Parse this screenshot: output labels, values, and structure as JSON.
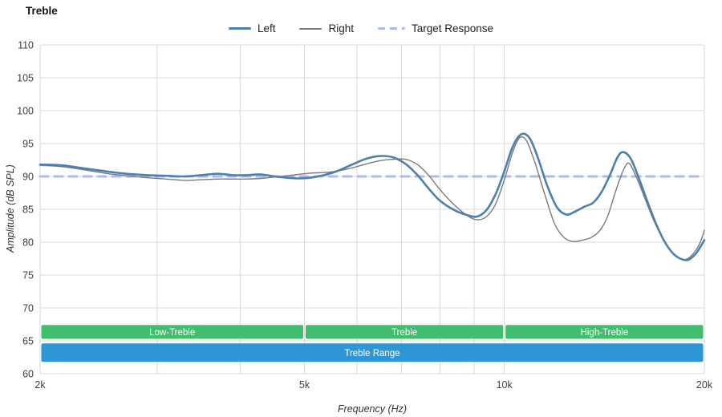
{
  "title": "Treble",
  "legend": [
    {
      "label": "Left",
      "color": "#4b80af",
      "style": "solid-thick"
    },
    {
      "label": "Right",
      "color": "#7b7b7b",
      "style": "solid-thin"
    },
    {
      "label": "Target Response",
      "color": "#aeb8f2",
      "style": "dashed"
    }
  ],
  "chart_data": {
    "type": "line",
    "title": "Treble",
    "xlabel": "Frequency (Hz)",
    "ylabel": "Amplitude (dB SPL)",
    "x_scale": "log",
    "xlim": [
      2000,
      20000
    ],
    "ylim": [
      60,
      110
    ],
    "y_ticks": [
      60,
      65,
      70,
      75,
      80,
      85,
      90,
      95,
      100,
      105,
      110
    ],
    "x_ticks": [
      {
        "value": 2000,
        "label": "2k"
      },
      {
        "value": 5000,
        "label": "5k"
      },
      {
        "value": 10000,
        "label": "10k"
      },
      {
        "value": 20000,
        "label": "20k"
      }
    ],
    "x_gridlines": [
      2000,
      3000,
      4000,
      5000,
      6000,
      7000,
      8000,
      9000,
      10000,
      20000
    ],
    "grid": true,
    "legend_position": "top",
    "colors": {
      "grid": "#d9d9d9",
      "tick": "#404040",
      "band_text": "#ffffff",
      "background": "#ffffff"
    },
    "series": [
      {
        "name": "Left",
        "color": "#4b80af",
        "width": 2.6,
        "dash": null,
        "points": [
          [
            2000,
            91.8
          ],
          [
            2150,
            91.7
          ],
          [
            2300,
            91.3
          ],
          [
            2500,
            90.8
          ],
          [
            2700,
            90.4
          ],
          [
            2900,
            90.2
          ],
          [
            3100,
            90.1
          ],
          [
            3300,
            90.0
          ],
          [
            3500,
            90.2
          ],
          [
            3700,
            90.4
          ],
          [
            3900,
            90.2
          ],
          [
            4100,
            90.2
          ],
          [
            4300,
            90.3
          ],
          [
            4500,
            90.0
          ],
          [
            4700,
            89.8
          ],
          [
            4900,
            89.7
          ],
          [
            5100,
            89.8
          ],
          [
            5350,
            90.2
          ],
          [
            5600,
            90.8
          ],
          [
            5900,
            91.8
          ],
          [
            6200,
            92.7
          ],
          [
            6500,
            93.1
          ],
          [
            6800,
            92.9
          ],
          [
            7100,
            91.9
          ],
          [
            7400,
            90.2
          ],
          [
            7700,
            88.1
          ],
          [
            8000,
            86.3
          ],
          [
            8400,
            84.9
          ],
          [
            8800,
            84.1
          ],
          [
            9100,
            83.9
          ],
          [
            9400,
            84.9
          ],
          [
            9700,
            87.3
          ],
          [
            10000,
            90.8
          ],
          [
            10300,
            94.6
          ],
          [
            10600,
            96.4
          ],
          [
            10900,
            95.9
          ],
          [
            11200,
            93.2
          ],
          [
            11600,
            88.6
          ],
          [
            12000,
            85.3
          ],
          [
            12400,
            84.2
          ],
          [
            12800,
            84.7
          ],
          [
            13200,
            85.4
          ],
          [
            13600,
            86.0
          ],
          [
            14000,
            87.6
          ],
          [
            14400,
            90.1
          ],
          [
            14800,
            92.9
          ],
          [
            15100,
            93.7
          ],
          [
            15500,
            92.7
          ],
          [
            15900,
            90.0
          ],
          [
            16400,
            86.3
          ],
          [
            16900,
            82.9
          ],
          [
            17400,
            80.2
          ],
          [
            17900,
            78.4
          ],
          [
            18400,
            77.5
          ],
          [
            18900,
            77.3
          ],
          [
            19400,
            78.2
          ],
          [
            19700,
            79.2
          ],
          [
            20000,
            80.3
          ]
        ]
      },
      {
        "name": "Right",
        "color": "#7b7b7b",
        "width": 1.4,
        "dash": null,
        "points": [
          [
            2000,
            91.7
          ],
          [
            2150,
            91.5
          ],
          [
            2300,
            91.1
          ],
          [
            2500,
            90.5
          ],
          [
            2700,
            90.1
          ],
          [
            2900,
            89.8
          ],
          [
            3100,
            89.6
          ],
          [
            3300,
            89.4
          ],
          [
            3500,
            89.5
          ],
          [
            3700,
            89.6
          ],
          [
            3900,
            89.6
          ],
          [
            4100,
            89.6
          ],
          [
            4300,
            89.7
          ],
          [
            4500,
            89.9
          ],
          [
            4700,
            90.1
          ],
          [
            4900,
            90.3
          ],
          [
            5100,
            90.5
          ],
          [
            5350,
            90.6
          ],
          [
            5600,
            90.8
          ],
          [
            5900,
            91.3
          ],
          [
            6200,
            91.9
          ],
          [
            6500,
            92.4
          ],
          [
            6800,
            92.6
          ],
          [
            7100,
            92.6
          ],
          [
            7400,
            91.8
          ],
          [
            7700,
            90.1
          ],
          [
            8000,
            88.0
          ],
          [
            8400,
            85.7
          ],
          [
            8800,
            84.0
          ],
          [
            9100,
            83.4
          ],
          [
            9400,
            83.9
          ],
          [
            9700,
            85.8
          ],
          [
            10000,
            89.5
          ],
          [
            10300,
            93.8
          ],
          [
            10550,
            95.9
          ],
          [
            10800,
            95.4
          ],
          [
            11100,
            92.3
          ],
          [
            11500,
            87.3
          ],
          [
            11900,
            82.8
          ],
          [
            12300,
            80.7
          ],
          [
            12700,
            80.1
          ],
          [
            13100,
            80.3
          ],
          [
            13500,
            80.7
          ],
          [
            13900,
            81.7
          ],
          [
            14300,
            83.9
          ],
          [
            14700,
            87.7
          ],
          [
            15100,
            90.9
          ],
          [
            15400,
            92.0
          ],
          [
            15800,
            89.9
          ],
          [
            16300,
            86.5
          ],
          [
            16800,
            83.2
          ],
          [
            17300,
            80.6
          ],
          [
            17800,
            78.6
          ],
          [
            18300,
            77.6
          ],
          [
            18800,
            77.4
          ],
          [
            19300,
            78.4
          ],
          [
            19700,
            79.9
          ],
          [
            20000,
            81.8
          ]
        ]
      },
      {
        "name": "Target Response",
        "color": "#aeb8f2",
        "width": 3,
        "dash": [
          10,
          8
        ],
        "points": [
          [
            2000,
            90
          ],
          [
            20000,
            90
          ]
        ]
      }
    ],
    "bands": [
      {
        "label": "Low-Treble",
        "x_start": 2000,
        "x_end": 5000,
        "y_start": 65.3,
        "y_end": 67.4,
        "color": "#41bd6e"
      },
      {
        "label": "Treble",
        "x_start": 5000,
        "x_end": 10000,
        "y_start": 65.3,
        "y_end": 67.4,
        "color": "#41bd6e"
      },
      {
        "label": "High-Treble",
        "x_start": 10000,
        "x_end": 20000,
        "y_start": 65.3,
        "y_end": 67.4,
        "color": "#41bd6e"
      },
      {
        "label": "Treble Range",
        "x_start": 2000,
        "x_end": 20000,
        "y_start": 61.8,
        "y_end": 64.6,
        "color": "#2e96d5"
      }
    ]
  }
}
